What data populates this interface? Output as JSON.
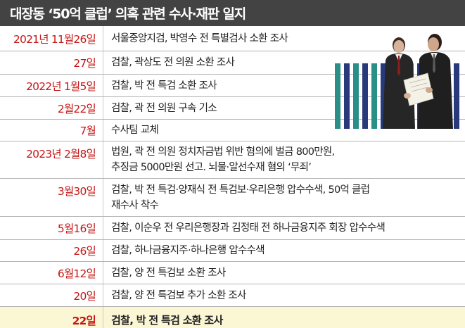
{
  "header": {
    "title": "대장동 ‘50억 클럽’ 의혹 관련 수사·재판 일지"
  },
  "rows": [
    {
      "date": "2021년 11월26일",
      "lines": [
        "서울중앙지검, 박영수 전 특별검사 소환 조사"
      ]
    },
    {
      "date": "27일",
      "lines": [
        "검찰, 곽상도 전 의원 소환 조사"
      ]
    },
    {
      "date": "2022년 1월5일",
      "lines": [
        "검찰, 박 전 특검 소환 조사"
      ]
    },
    {
      "date": "2월22일",
      "lines": [
        "검찰, 곽 전 의원 구속 기소"
      ]
    },
    {
      "date": "7월",
      "lines": [
        "수사팀 교체"
      ]
    },
    {
      "date": "2023년 2월8일",
      "lines": [
        "법원, 곽 전 의원 정치자금법 위반 혐의에 벌금 800만원,",
        "추징금 5000만원 선고. 뇌물·알선수재 혐의 ‘무죄’"
      ]
    },
    {
      "date": "3월30일",
      "lines": [
        "검찰, 박 전 특검·양재식 전 특검보·우리은행 압수수색, 50억 클럽",
        "재수사 착수"
      ]
    },
    {
      "date": "5월16일",
      "lines": [
        "검찰, 이순우 전 우리은행장과 김정태 전 하나금융지주 회장 압수수색"
      ]
    },
    {
      "date": "26일",
      "lines": [
        "검찰, 하나금융지주·하나은행 압수수색"
      ]
    },
    {
      "date": "6월12일",
      "lines": [
        "검찰, 양 전 특검보 소환 조사"
      ]
    },
    {
      "date": "20일",
      "lines": [
        "검찰, 양 전 특검보 추가 소환 조사"
      ]
    },
    {
      "date": "22일",
      "lines": [
        "검찰, 박 전 특검 소환 조사"
      ]
    }
  ],
  "colors": {
    "header_bg": "#434343",
    "date_text": "#c41818",
    "highlight_row_bg": "#fbf6d4",
    "bar_teal": "#2a8f86",
    "bar_navy": "#283a7c"
  },
  "illustration": {
    "icon": "businessmen-reviewing-document-icon"
  }
}
